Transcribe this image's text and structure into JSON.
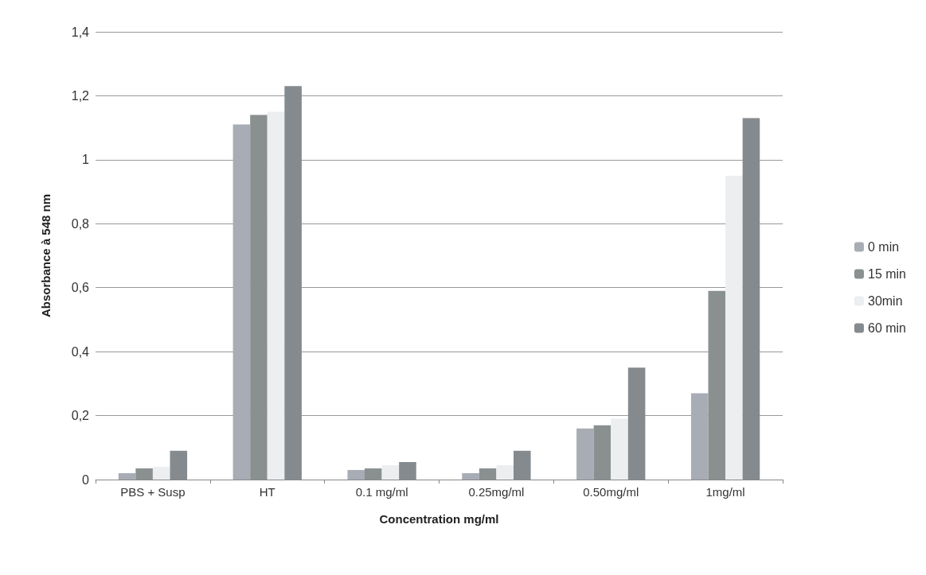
{
  "chart_data": {
    "type": "bar",
    "xlabel": "Concentration mg/ml",
    "ylabel": "Absorbance à 548 nm",
    "categories": [
      "PBS + Susp",
      "HT",
      "0.1 mg/ml",
      "0.25mg/ml",
      "0.50mg/ml",
      "1mg/ml"
    ],
    "series": [
      {
        "name": "0 min",
        "color": "#a8acb4",
        "values": [
          0.02,
          1.11,
          0.03,
          0.02,
          0.16,
          0.27
        ]
      },
      {
        "name": "15 min",
        "color": "#8a9090",
        "values": [
          0.035,
          1.14,
          0.035,
          0.035,
          0.17,
          0.59
        ]
      },
      {
        "name": "30min",
        "color": "#eceef0",
        "values": [
          0.04,
          1.15,
          0.045,
          0.045,
          0.19,
          0.95
        ]
      },
      {
        "name": "60 min",
        "color": "#858a8e",
        "values": [
          0.09,
          1.23,
          0.055,
          0.09,
          0.35,
          1.13
        ]
      }
    ],
    "ylim": [
      0,
      1.4
    ],
    "yticks": [
      0,
      {
        "value": 0.2,
        "label": "0,2"
      },
      {
        "value": 0.4,
        "label": "0,4"
      },
      {
        "value": 0.6,
        "label": "0,6"
      },
      {
        "value": 0.8,
        "label": "0,8"
      },
      1,
      {
        "value": 1.2,
        "label": "1,2"
      },
      {
        "value": 1.4,
        "label": "1,4"
      }
    ],
    "grid": "y",
    "legend": "right"
  }
}
